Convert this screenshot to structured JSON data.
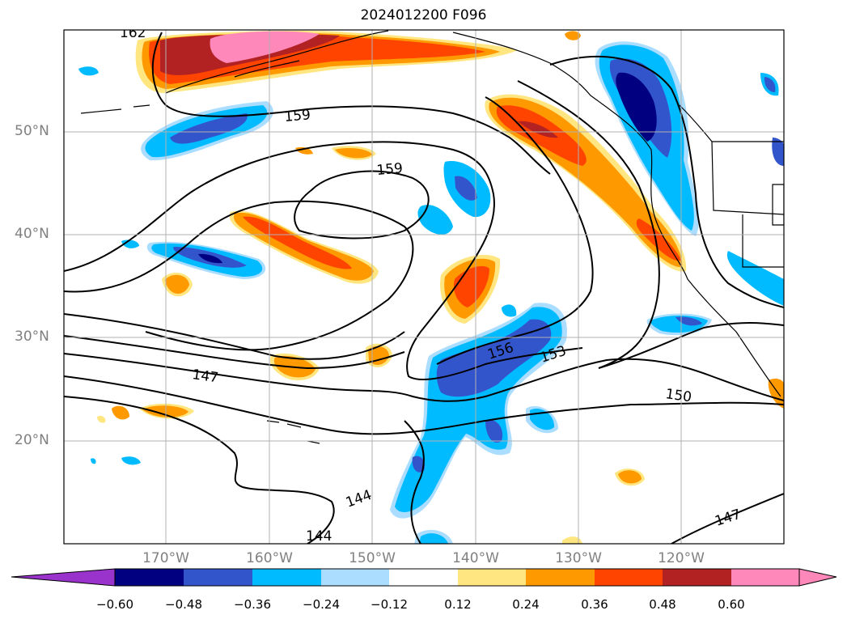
{
  "title": "2024012200 F096",
  "lat_labels": [
    "50°N",
    "40°N",
    "30°N",
    "20°N"
  ],
  "lon_labels": [
    "170°W",
    "160°W",
    "150°W",
    "140°W",
    "130°W",
    "120°W"
  ],
  "contour_labels": [
    "162",
    "159",
    "159",
    "156",
    "153",
    "150",
    "147",
    "147",
    "144",
    "144"
  ],
  "colorbar": {
    "ticks": [
      "−0.60",
      "−0.48",
      "−0.36",
      "−0.24",
      "−0.12",
      "0.12",
      "0.24",
      "0.36",
      "0.48",
      "0.60"
    ],
    "colors": [
      "#9933cc",
      "#000080",
      "#3355cc",
      "#00bbff",
      "#aaddff",
      "#ffffff",
      "#ffe680",
      "#ff9900",
      "#ff4400",
      "#b22222",
      "#ff88bb"
    ]
  }
}
